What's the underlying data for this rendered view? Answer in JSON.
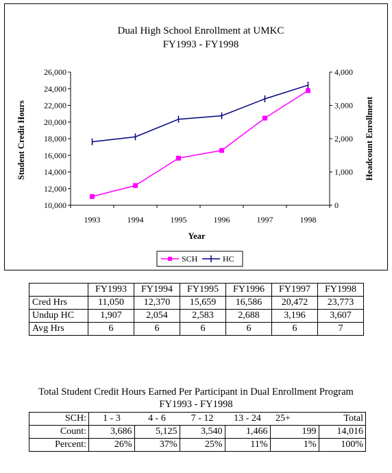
{
  "chart_data": {
    "type": "line",
    "title": "Dual High School Enrollment at UMKC",
    "subtitle": "FY1993 - FY1998",
    "xlabel": "Year",
    "ylabel": "Student Credit Hours",
    "y2label": "Headcount Enrollment",
    "categories": [
      "1993",
      "1994",
      "1995",
      "1996",
      "1997",
      "1998"
    ],
    "ylim": [
      10000,
      26000
    ],
    "yticks": [
      "10,000",
      "12,000",
      "14,000",
      "16,000",
      "18,000",
      "20,000",
      "22,000",
      "24,000",
      "26,000"
    ],
    "y2lim": [
      0,
      4000
    ],
    "y2ticks": [
      "0",
      "1,000",
      "2,000",
      "3,000",
      "4,000"
    ],
    "series": [
      {
        "name": "SCH",
        "axis": "left",
        "color": "#ff00ff",
        "marker": "square",
        "values": [
          11050,
          12370,
          15659,
          16586,
          20472,
          23773
        ]
      },
      {
        "name": "HC",
        "axis": "right",
        "color": "#000080",
        "marker": "plus",
        "values": [
          1907,
          2054,
          2583,
          2688,
          3196,
          3607
        ]
      }
    ],
    "legend_position": "bottom",
    "grid": false
  },
  "summary_table": {
    "headers": [
      "FY1993",
      "FY1994",
      "FY1995",
      "FY1996",
      "FY1997",
      "FY1998"
    ],
    "rows": [
      {
        "label": "Cred Hrs",
        "values": [
          "11,050",
          "12,370",
          "15,659",
          "16,586",
          "20,472",
          "23,773"
        ]
      },
      {
        "label": "Undup HC",
        "values": [
          "1,907",
          "2,054",
          "2,583",
          "2,688",
          "3,196",
          "3,607"
        ]
      },
      {
        "label": "Avg Hrs",
        "values": [
          "6",
          "6",
          "6",
          "6",
          "6",
          "7"
        ]
      }
    ]
  },
  "distribution": {
    "title": "Total Student Credit Hours Earned Per Participant in Dual Enrollment Program",
    "subtitle": "FY1993 - FY1998",
    "header_label": "SCH:",
    "bins": [
      "1 - 3",
      "4 - 6",
      "7 - 12",
      "13 - 24",
      "25+",
      "Total"
    ],
    "count_label": "Count:",
    "counts": [
      "3,686",
      "5,125",
      "3,540",
      "1,466",
      "199",
      "14,016"
    ],
    "percent_label": "Percent:",
    "percents": [
      "26%",
      "37%",
      "25%",
      "11%",
      "1%",
      "100%"
    ]
  }
}
